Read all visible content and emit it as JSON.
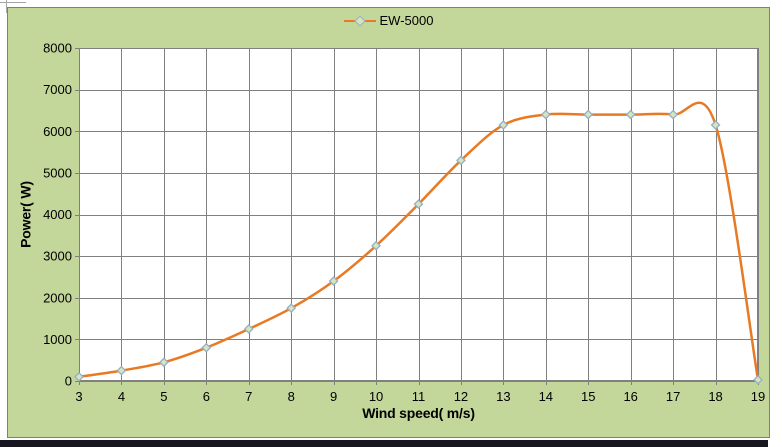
{
  "legend": {
    "label": "EW-5000"
  },
  "axes": {
    "x_title": "Wind speed( m/s)",
    "y_title": "Power( W)"
  },
  "chart_data": {
    "type": "line",
    "title": "",
    "series": [
      {
        "name": "EW-5000",
        "x": [
          3,
          4,
          5,
          6,
          7,
          8,
          9,
          10,
          11,
          12,
          13,
          14,
          15,
          16,
          17,
          18,
          19
        ],
        "values": [
          100,
          250,
          450,
          800,
          1250,
          1750,
          2400,
          3250,
          4250,
          5300,
          6150,
          6400,
          6400,
          6400,
          6400,
          6150,
          30
        ]
      }
    ],
    "xlabel": "Wind speed( m/s)",
    "ylabel": "Power( W)",
    "xlim": [
      3,
      19
    ],
    "ylim": [
      0,
      8000
    ],
    "x_ticks": [
      3,
      4,
      5,
      6,
      7,
      8,
      9,
      10,
      11,
      12,
      13,
      14,
      15,
      16,
      17,
      18,
      19
    ],
    "y_ticks": [
      0,
      1000,
      2000,
      3000,
      4000,
      5000,
      6000,
      7000,
      8000
    ],
    "grid": true,
    "legend_position": "top-center",
    "line_style": "smooth",
    "marker": "diamond"
  },
  "colors": {
    "chart_background": "#C4D79B",
    "chart_border": "#7F7F7F",
    "plot_background": "#FFFFFF",
    "gridline": "#808080",
    "series_line": "#E87A24",
    "marker_fill": "#D7E4BC",
    "marker_border": "#94AFC7",
    "text": "#000000",
    "bottom_bar": "#17171F"
  }
}
